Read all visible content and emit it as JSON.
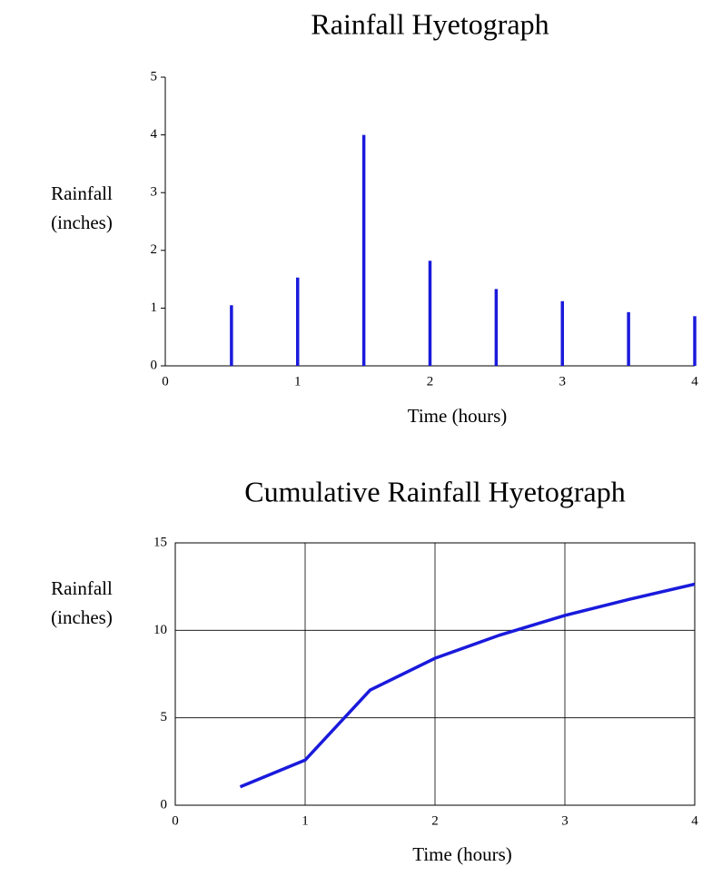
{
  "chart_data": [
    {
      "type": "bar",
      "title": "Rainfall Hyetograph",
      "ylabel": [
        "Rainfall",
        "(inches)"
      ],
      "xlabel": "Time (hours)",
      "x": [
        0.5,
        1,
        1.5,
        2,
        2.5,
        3,
        3.5,
        4
      ],
      "values": [
        1.05,
        1.53,
        4.0,
        1.82,
        1.33,
        1.12,
        0.93,
        0.86
      ],
      "color": "#1a1adc",
      "xlim": [
        0,
        4
      ],
      "ylim": [
        0,
        5
      ],
      "xticks": [
        0,
        1,
        2,
        3,
        4
      ],
      "yticks": [
        0,
        1,
        2,
        3,
        4,
        5
      ],
      "grid": false
    },
    {
      "type": "line",
      "title": "Cumulative Rainfall Hyetograph",
      "ylabel": [
        "Rainfall",
        "(inches)"
      ],
      "xlabel": "Time (hours)",
      "x": [
        0.5,
        1,
        1.5,
        2,
        2.5,
        3,
        3.5,
        4
      ],
      "values": [
        1.05,
        2.58,
        6.58,
        8.4,
        9.73,
        10.85,
        11.78,
        12.64
      ],
      "color": "#1a1adc",
      "xlim": [
        0,
        4
      ],
      "ylim": [
        0,
        15
      ],
      "xticks": [
        0,
        1,
        2,
        3,
        4
      ],
      "yticks": [
        0,
        5,
        10,
        15
      ],
      "grid": true
    }
  ]
}
